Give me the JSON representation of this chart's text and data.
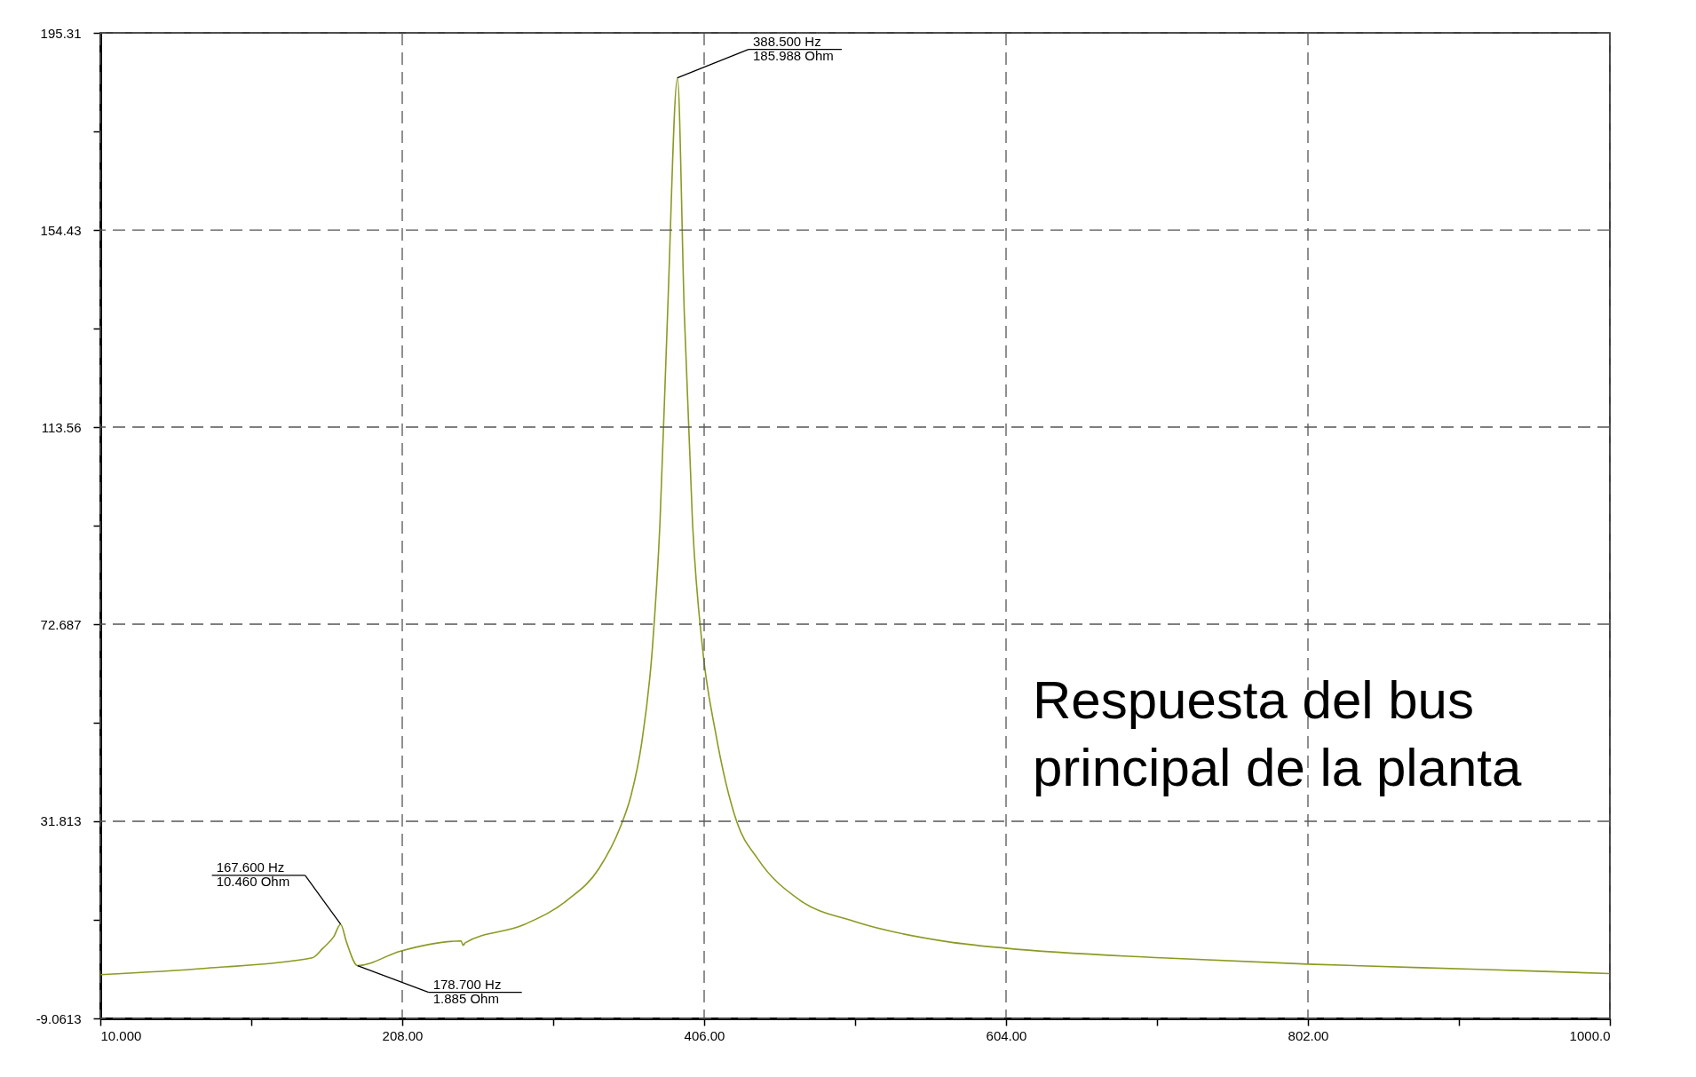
{
  "chart_data": {
    "type": "line",
    "annotations": [
      {
        "text": "388.500 Hz\n185.988 Ohm",
        "x": 388.5,
        "y": 185.988
      },
      {
        "text": "167.600 Hz\n10.460 Ohm",
        "x": 167.6,
        "y": 10.46
      },
      {
        "text": "178.700 Hz\n1.885 Ohm",
        "x": 178.7,
        "y": 1.885
      },
      "Respuesta del bus\nprincipal de la planta"
    ],
    "series": [
      {
        "color": "#8c9a22",
        "x": [
          10,
          79.6,
          149,
          156,
          163,
          167.6,
          171.4,
          178.7,
          206.9,
          246.5,
          248,
          249.3,
          288,
          316,
          337,
          351,
          358,
          365,
          372,
          377,
          382,
          388.5,
          393,
          398.4,
          405,
          413.5,
          427.4,
          441,
          469,
          504,
          566.6,
          603.5,
          705.7,
          801.7,
          914,
          1000
        ],
        "values": [
          0.0,
          1.35,
          3.5,
          5.5,
          7.85,
          10.46,
          6.8,
          1.885,
          4.9,
          7.0,
          6.1,
          6.6,
          10.4,
          15.4,
          22,
          30.6,
          37.1,
          48,
          67.5,
          93.5,
          137,
          185.988,
          137,
          93.5,
          67.5,
          50.2,
          31.7,
          24.1,
          15.4,
          11.1,
          6.8,
          5.5,
          3.5,
          2.2,
          1.1,
          0.25
        ]
      }
    ],
    "xlim": [
      10,
      1000
    ],
    "xticks": [
      {
        "value": 10,
        "label": "10.000"
      },
      {
        "value": 109,
        "label": null
      },
      {
        "value": 208,
        "label": "208.00"
      },
      {
        "value": 307,
        "label": null
      },
      {
        "value": 406,
        "label": "406.00"
      },
      {
        "value": 505,
        "label": null
      },
      {
        "value": 604,
        "label": "604.00"
      },
      {
        "value": 703,
        "label": null
      },
      {
        "value": 802,
        "label": "802.00"
      },
      {
        "value": 901,
        "label": null
      },
      {
        "value": 1000,
        "label": "1000.0"
      }
    ],
    "ylim": [
      -9.0613,
      195.31
    ],
    "yticks": [
      -9.0613,
      {
        "value": 11.376,
        "label": null
      },
      31.813,
      {
        "value": 52.25,
        "label": null
      },
      72.687,
      {
        "value": 93.12,
        "label": null
      },
      113.56,
      {
        "value": 134.0,
        "label": null
      },
      154.43,
      {
        "value": 174.87,
        "label": null
      },
      195.31
    ],
    "grid": true,
    "marker": "none",
    "line_style": "solid"
  }
}
